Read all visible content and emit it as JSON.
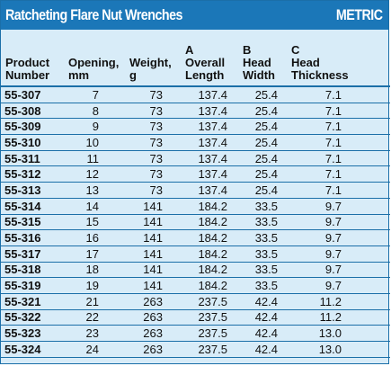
{
  "header": {
    "title": "Ratcheting Flare Nut Wrenches",
    "badge": "METRIC"
  },
  "columns": [
    {
      "lines": [
        "",
        "Product",
        "Number"
      ]
    },
    {
      "lines": [
        "",
        "Opening,",
        "mm"
      ]
    },
    {
      "lines": [
        "",
        "Weight,",
        "g"
      ]
    },
    {
      "lines": [
        "A",
        "Overall",
        "Length"
      ]
    },
    {
      "lines": [
        "B",
        "Head",
        "Width"
      ]
    },
    {
      "lines": [
        "C",
        "Head",
        "Thickness"
      ]
    }
  ],
  "rows": [
    [
      "55-307",
      "7",
      "73",
      "137.4",
      "25.4",
      "7.1"
    ],
    [
      "55-308",
      "8",
      "73",
      "137.4",
      "25.4",
      "7.1"
    ],
    [
      "55-309",
      "9",
      "73",
      "137.4",
      "25.4",
      "7.1"
    ],
    [
      "55-310",
      "10",
      "73",
      "137.4",
      "25.4",
      "7.1"
    ],
    [
      "55-311",
      "11",
      "73",
      "137.4",
      "25.4",
      "7.1"
    ],
    [
      "55-312",
      "12",
      "73",
      "137.4",
      "25.4",
      "7.1"
    ],
    [
      "55-313",
      "13",
      "73",
      "137.4",
      "25.4",
      "7.1"
    ],
    [
      "55-314",
      "14",
      "141",
      "184.2",
      "33.5",
      "9.7"
    ],
    [
      "55-315",
      "15",
      "141",
      "184.2",
      "33.5",
      "9.7"
    ],
    [
      "55-316",
      "16",
      "141",
      "184.2",
      "33.5",
      "9.7"
    ],
    [
      "55-317",
      "17",
      "141",
      "184.2",
      "33.5",
      "9.7"
    ],
    [
      "55-318",
      "18",
      "141",
      "184.2",
      "33.5",
      "9.7"
    ],
    [
      "55-319",
      "19",
      "141",
      "184.2",
      "33.5",
      "9.7"
    ],
    [
      "55-321",
      "21",
      "263",
      "237.5",
      "42.4",
      "11.2"
    ],
    [
      "55-322",
      "22",
      "263",
      "237.5",
      "42.4",
      "11.2"
    ],
    [
      "55-323",
      "23",
      "263",
      "237.5",
      "42.4",
      "13.0"
    ],
    [
      "55-324",
      "24",
      "263",
      "237.5",
      "42.4",
      "13.0"
    ]
  ],
  "colors": {
    "header_blue": "#1b77b8",
    "table_bg": "#d8ecf8",
    "rule": "#1b6fa8"
  }
}
